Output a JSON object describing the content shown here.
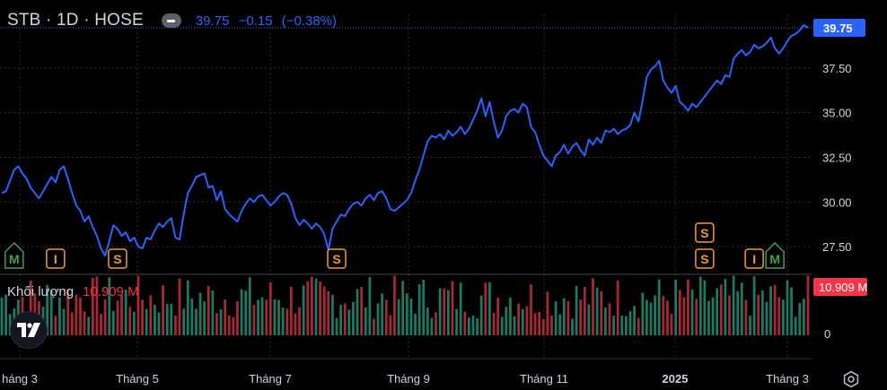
{
  "header": {
    "symbol": "STB · 1D · HOSE",
    "last": "39.75",
    "change": "−0.15",
    "change_pct": "(−0.38%)"
  },
  "volume": {
    "label": "Khối lượng",
    "value": "10.909 M",
    "tag": "10.909 M",
    "zero_label": "0"
  },
  "colors": {
    "background": "#000000",
    "line": "#2962ff",
    "up_volume": "#1b7a63",
    "down_volume": "#a82833",
    "grid": "#2a2e39",
    "text": "#d1d4dc",
    "marker_s": "#f29c2b",
    "marker_m": "#3fa152",
    "marker_i": "#f29c2b"
  },
  "chart_data": {
    "type": "line",
    "y_axis": {
      "range": [
        26.0,
        40.5
      ],
      "ticks": [
        "27.50",
        "30.00",
        "32.50",
        "35.00",
        "37.50"
      ],
      "last_price_tag": "39.75"
    },
    "x_axis": {
      "ticks": [
        "háng 3",
        "Tháng 5",
        "Tháng 7",
        "Tháng 9",
        "Tháng 11",
        "2025",
        "Tháng 3"
      ]
    },
    "grid": true,
    "series": [
      {
        "values": [
          30.5,
          30.6,
          31.2,
          31.8,
          32.0,
          31.6,
          31.3,
          30.8,
          30.5,
          30.2,
          30.6,
          31.0,
          31.4,
          31.1,
          31.8,
          32.0,
          31.3,
          30.5,
          29.8,
          29.5,
          28.9,
          29.2,
          28.6,
          28.1,
          27.4,
          27.0,
          27.8,
          28.7,
          28.5,
          28.1,
          28.3,
          27.8,
          28.0,
          27.5,
          27.4,
          28.0,
          27.9,
          28.4,
          28.8,
          28.6,
          28.9,
          29.1,
          28.0,
          27.9,
          29.3,
          30.5,
          30.9,
          31.4,
          31.5,
          31.6,
          30.8,
          30.9,
          30.1,
          30.6,
          29.6,
          29.3,
          29.1,
          28.9,
          29.5,
          29.9,
          30.2,
          30.0,
          30.3,
          30.4,
          30.1,
          29.8,
          30.0,
          30.3,
          30.5,
          30.4,
          29.9,
          29.1,
          28.7,
          29.0,
          28.8,
          28.5,
          28.8,
          28.6,
          28.2,
          27.3,
          28.5,
          28.9,
          29.3,
          29.2,
          29.6,
          29.9,
          30.0,
          29.8,
          30.2,
          30.4,
          30.1,
          30.5,
          30.6,
          30.2,
          29.6,
          29.5,
          29.7,
          29.9,
          30.1,
          30.5,
          31.2,
          31.8,
          32.6,
          33.4,
          33.7,
          33.6,
          33.8,
          33.5,
          34.0,
          33.7,
          33.9,
          34.2,
          33.8,
          34.1,
          34.6,
          35.1,
          35.8,
          34.8,
          35.6,
          34.5,
          33.6,
          34.0,
          34.8,
          35.1,
          35.2,
          35.0,
          35.5,
          35.3,
          34.2,
          33.9,
          33.2,
          32.6,
          32.3,
          32.0,
          32.6,
          32.8,
          33.2,
          32.7,
          33.1,
          33.3,
          32.9,
          32.6,
          33.5,
          33.2,
          33.6,
          33.3,
          34.0,
          33.9,
          34.1,
          33.8,
          34.0,
          34.1,
          34.3,
          35.0,
          34.5,
          35.7,
          37.0,
          37.4,
          37.6,
          37.9,
          36.8,
          36.4,
          36.1,
          36.5,
          35.6,
          35.4,
          35.1,
          35.5,
          35.3,
          35.6,
          35.9,
          36.2,
          36.5,
          36.8,
          36.6,
          37.1,
          37.0,
          38.0,
          38.3,
          38.5,
          38.2,
          38.4,
          38.8,
          38.6,
          38.7,
          38.9,
          39.2,
          38.6,
          38.3,
          38.6,
          39.0,
          39.3,
          39.4,
          39.6,
          39.9,
          39.75
        ],
        "markers": [
          {
            "label": "M",
            "kind": "M",
            "index": 3
          },
          {
            "label": "I",
            "kind": "I",
            "index": 13
          },
          {
            "label": "S",
            "kind": "S",
            "index": 28
          },
          {
            "label": "S",
            "kind": "S",
            "index": 81
          },
          {
            "label": "S",
            "kind": "S",
            "index": 170,
            "stack": 2
          },
          {
            "label": "S",
            "kind": "S",
            "index": 170,
            "stack": 1
          },
          {
            "label": "I",
            "kind": "I",
            "index": 182
          },
          {
            "label": "M",
            "kind": "M",
            "index": 187
          }
        ]
      }
    ]
  }
}
